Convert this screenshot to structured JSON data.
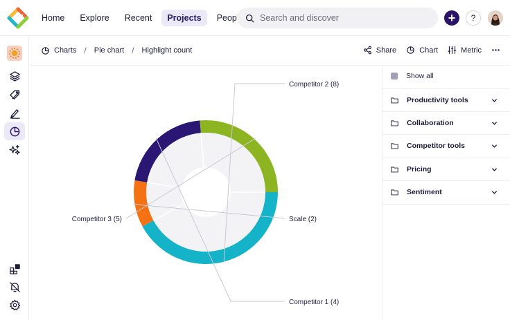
{
  "topbar": {
    "nav": [
      "Home",
      "Explore",
      "Recent",
      "Projects",
      "People"
    ],
    "active_nav": "Projects",
    "search_placeholder": "Search and discover",
    "help_label": "?"
  },
  "breadcrumb": [
    "Charts",
    "Pie chart",
    "Highlight count"
  ],
  "actions": {
    "share": "Share",
    "chart": "Chart",
    "metric": "Metric"
  },
  "panel": {
    "show_all": "Show all",
    "groups": [
      "Productivity tools",
      "Collaboration",
      "Competitor tools",
      "Pricing",
      "Sentiment"
    ]
  },
  "colors": {
    "competitor2": "#14b3c7",
    "scale": "#f57214",
    "competitor1": "#2a1673",
    "competitor3": "#8db421",
    "inner": "#f3f3f6",
    "accent": "#2b1468"
  },
  "chart_data": {
    "type": "pie",
    "title": "Highlight count",
    "categories": [
      "Competitor 2",
      "Scale",
      "Competitor 1",
      "Competitor 3"
    ],
    "values": [
      8,
      2,
      4,
      5
    ],
    "labels": [
      "Competitor 2 (8)",
      "Scale (2)",
      "Competitor 1 (4)",
      "Competitor 3 (5)"
    ],
    "legend": "none"
  }
}
